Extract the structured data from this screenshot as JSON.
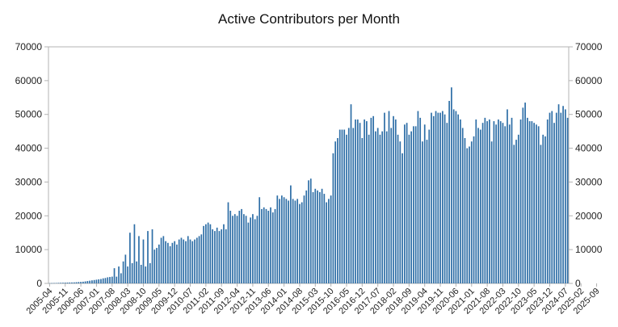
{
  "chart_data": {
    "type": "bar",
    "title": "Active Contributors per Month",
    "xlabel": "",
    "ylabel": "",
    "ylim": [
      0,
      70000
    ],
    "yticks": [
      0,
      10000,
      20000,
      30000,
      40000,
      50000,
      60000,
      70000
    ],
    "grid": false,
    "legend": "none",
    "bar_color": "#2f6fa7",
    "x_start": "2005-04",
    "x_tick_labels": [
      "2005-04",
      "2005-11",
      "2006-06",
      "2007-01",
      "2007-08",
      "2008-03",
      "2008-10",
      "2009-05",
      "2009-12",
      "2010-07",
      "2011-02",
      "2011-09",
      "2012-04",
      "2012-11",
      "2013-06",
      "2014-01",
      "2014-08",
      "2015-03",
      "2015-10",
      "2016-05",
      "2016-12",
      "2017-07",
      "2018-02",
      "2018-09",
      "2019-04",
      "2019-11",
      "2020-06",
      "2021-01",
      "2021-08",
      "2022-03",
      "2022-10",
      "2023-05",
      "2023-12",
      "2024-07",
      "2025-02",
      "2025-09"
    ],
    "values": [
      50,
      80,
      100,
      120,
      150,
      180,
      200,
      220,
      240,
      260,
      280,
      300,
      350,
      400,
      450,
      500,
      600,
      700,
      800,
      900,
      1000,
      1100,
      1200,
      1300,
      1500,
      1600,
      1800,
      1900,
      2000,
      4500,
      2000,
      5000,
      3000,
      6500,
      8500,
      5000,
      15000,
      6000,
      17500,
      6500,
      14000,
      5500,
      13000,
      5000,
      15500,
      6000,
      16000,
      10000,
      10500,
      11500,
      13500,
      14000,
      12500,
      12000,
      11000,
      12000,
      12500,
      11500,
      13000,
      13500,
      13000,
      12500,
      14000,
      13000,
      12500,
      13000,
      13500,
      14000,
      14500,
      17000,
      17500,
      18000,
      17500,
      16000,
      15500,
      16500,
      15500,
      16000,
      17500,
      16000,
      24000,
      21500,
      20000,
      20500,
      20000,
      21500,
      22000,
      20500,
      20000,
      18000,
      19500,
      20500,
      19000,
      20000,
      25500,
      22000,
      22500,
      22000,
      21500,
      22500,
      21000,
      22000,
      26000,
      25000,
      26000,
      25500,
      25000,
      24500,
      29000,
      25000,
      24500,
      25000,
      23500,
      24000,
      26000,
      27500,
      30500,
      31000,
      27000,
      28000,
      27500,
      27000,
      28000,
      26500,
      24000,
      25000,
      26000,
      38500,
      42000,
      43000,
      45500,
      45500,
      45500,
      44000,
      46000,
      53000,
      46000,
      48500,
      48500,
      47500,
      43000,
      48500,
      48000,
      44000,
      49000,
      49500,
      45000,
      46000,
      44000,
      45000,
      50500,
      45000,
      51000,
      46000,
      49500,
      48500,
      44000,
      42000,
      38500,
      47000,
      47500,
      44000,
      45000,
      46500,
      46500,
      51000,
      49000,
      42000,
      47000,
      42500,
      45500,
      50500,
      49500,
      51000,
      50500,
      50500,
      51000,
      50000,
      47500,
      54000,
      58000,
      51500,
      51000,
      50000,
      48500,
      46000,
      43000,
      40000,
      40500,
      42000,
      43500,
      48500,
      46000,
      45500,
      47500,
      49000,
      48000,
      48500,
      42000,
      48000,
      47000,
      48500,
      48000,
      47500,
      46500,
      51500,
      47000,
      49000,
      41000,
      42500,
      44000,
      48500,
      52000,
      53500,
      49000,
      48000,
      48000,
      47500,
      47000,
      46500,
      41000,
      44000,
      43500,
      48500,
      50500,
      51000,
      47500,
      50500,
      53000,
      50500,
      52500,
      51500,
      49000
    ]
  }
}
